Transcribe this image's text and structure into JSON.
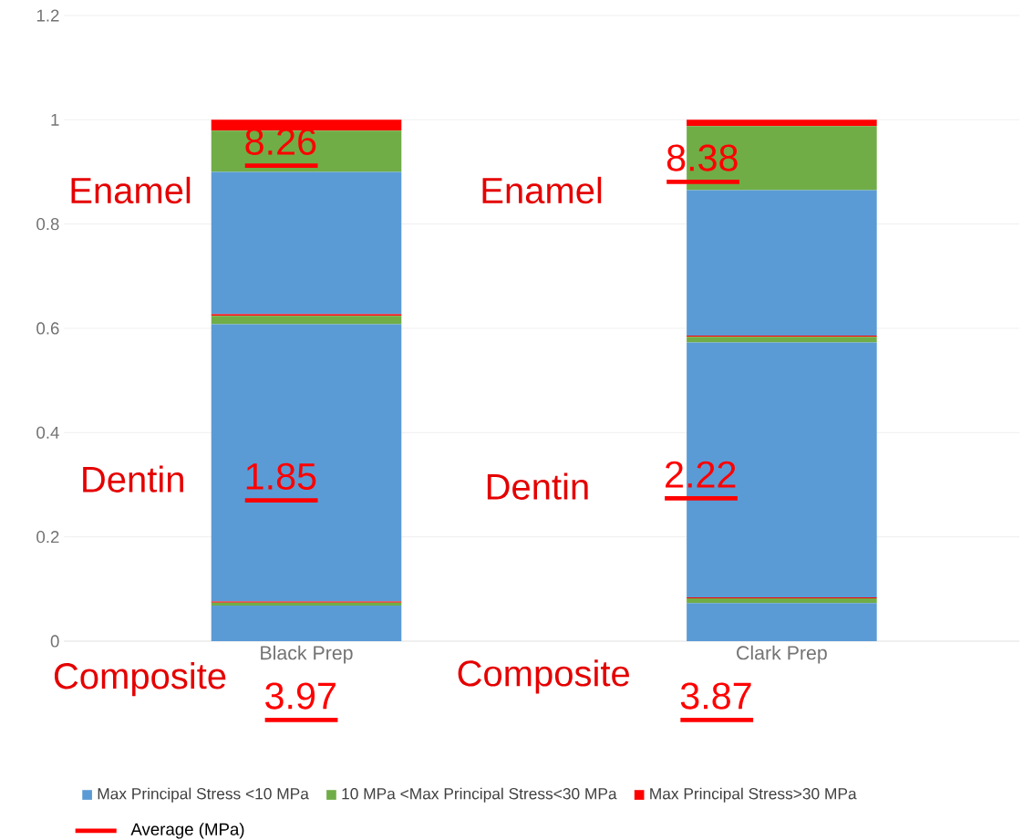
{
  "chart_data": {
    "type": "bar",
    "stacked": true,
    "categories": [
      "Black Prep",
      "Clark Prep"
    ],
    "series": [
      {
        "name": "Max Principal Stress <10 MPa",
        "color": "#5b9bd5",
        "values": [
          0.068,
          0.073
        ]
      },
      {
        "name": "10 MPa <Max Principal Stress<30 MPa",
        "color": "#70ad47",
        "values": [
          0.006,
          0.009
        ]
      },
      {
        "name": "Max Principal Stress>30 MPa",
        "color": "#ff0000",
        "values": [
          0.002,
          0.002
        ]
      },
      {
        "color": "#5b9bd5",
        "values": [
          0.532,
          0.489
        ]
      },
      {
        "color": "#70ad47",
        "values": [
          0.016,
          0.011
        ]
      },
      {
        "color": "#ff0000",
        "values": [
          0.003,
          0.002
        ]
      },
      {
        "color": "#5b9bd5",
        "values": [
          0.273,
          0.279
        ]
      },
      {
        "color": "#70ad47",
        "values": [
          0.079,
          0.123
        ]
      },
      {
        "color": "#ff0000",
        "values": [
          0.021,
          0.012
        ]
      }
    ],
    "ylim": [
      0,
      1.2
    ],
    "yticks": [
      0,
      0.2,
      0.4,
      0.6,
      0.8,
      1,
      1.2
    ],
    "grid": "y",
    "legend": "bottom",
    "annotations": [
      "Enamel",
      "Dentin",
      "Composite",
      "8.26",
      "1.85",
      "3.97",
      "Enamel",
      "Dentin",
      "Composite",
      "8.38",
      "2.22",
      "3.87",
      "Average (MPa)"
    ]
  }
}
